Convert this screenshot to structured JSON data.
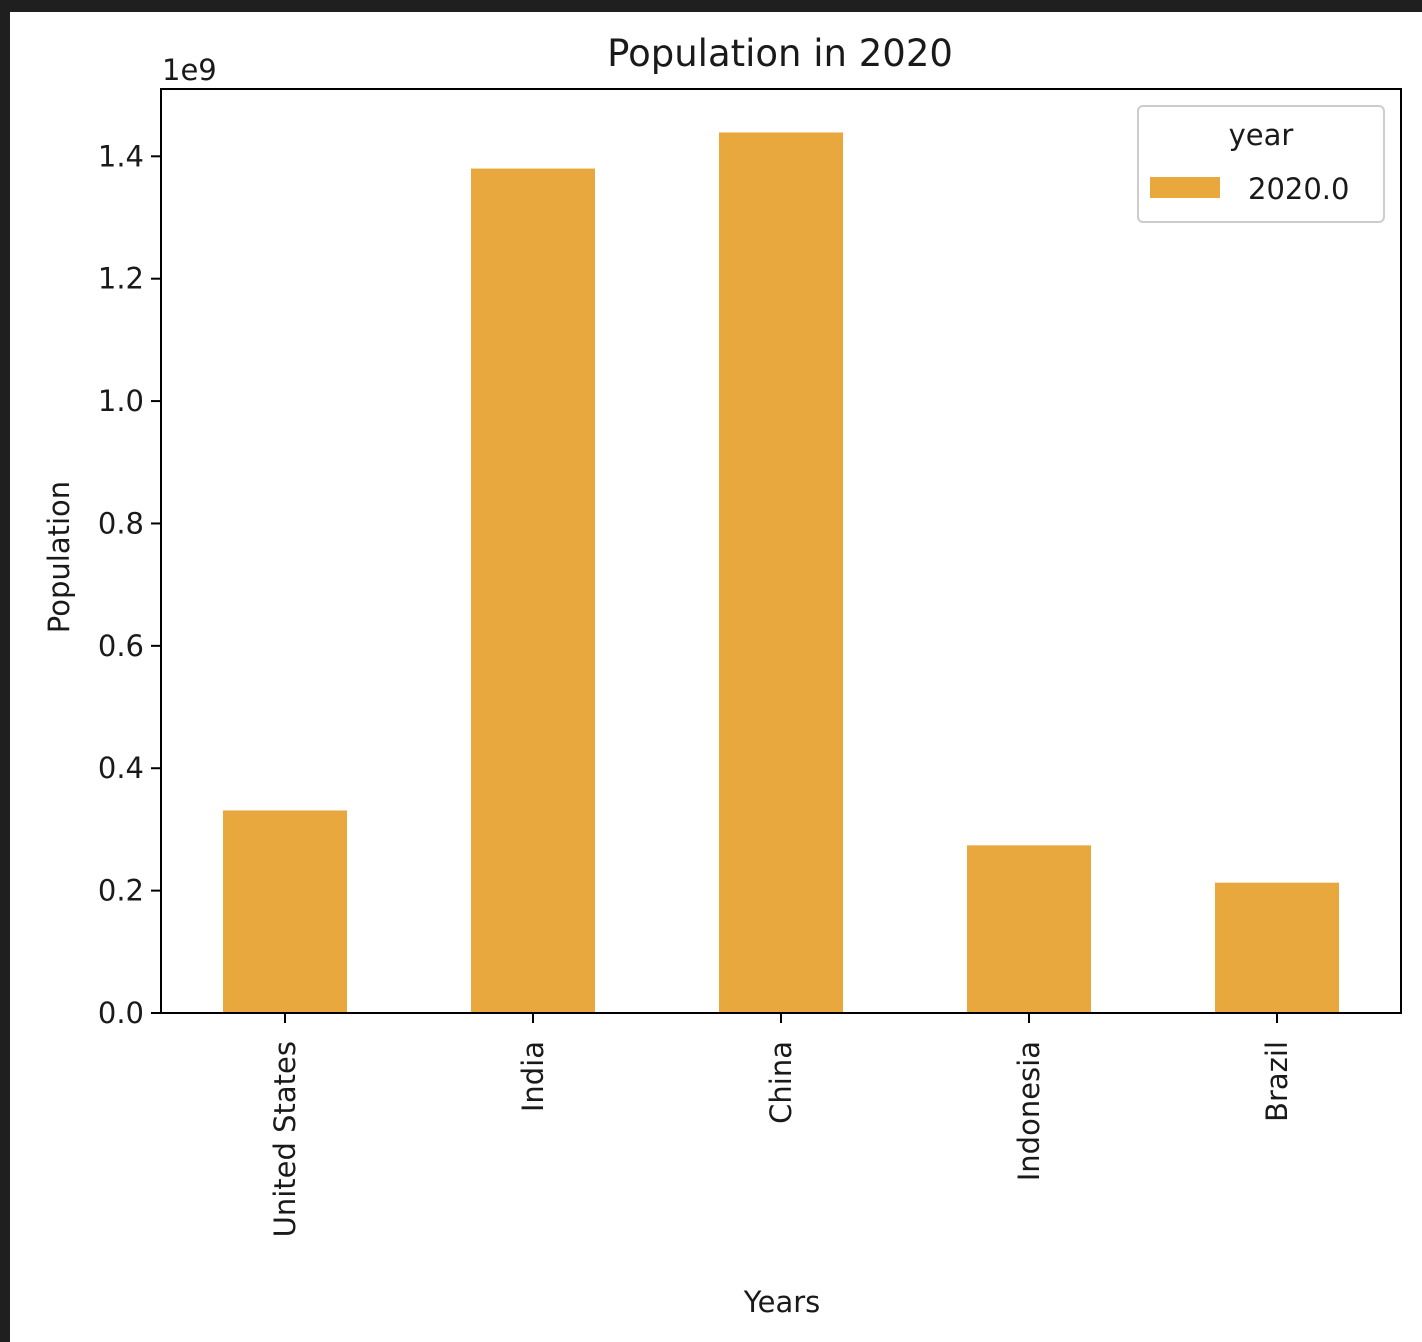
{
  "chart_data": {
    "type": "bar",
    "title": "Population in 2020",
    "xlabel": "Years",
    "ylabel": "Population",
    "y_offset_label": "1e9",
    "y_scale_factor": 1000000000,
    "ylim": [
      0,
      1510000000
    ],
    "yticks": [
      0,
      200000000,
      400000000,
      600000000,
      800000000,
      1000000000,
      1200000000,
      1400000000
    ],
    "ytick_labels": [
      "0.0",
      "0.2",
      "0.4",
      "0.6",
      "0.8",
      "1.0",
      "1.2",
      "1.4"
    ],
    "categories": [
      "United States",
      "India",
      "China",
      "Indonesia",
      "Brazil"
    ],
    "series": [
      {
        "name": "2020.0",
        "color": "#e9a83d",
        "values": [
          331000000,
          1380000000,
          1439000000,
          274000000,
          213000000
        ]
      }
    ],
    "legend": {
      "title": "year",
      "position": "top-right"
    },
    "grid": false
  }
}
